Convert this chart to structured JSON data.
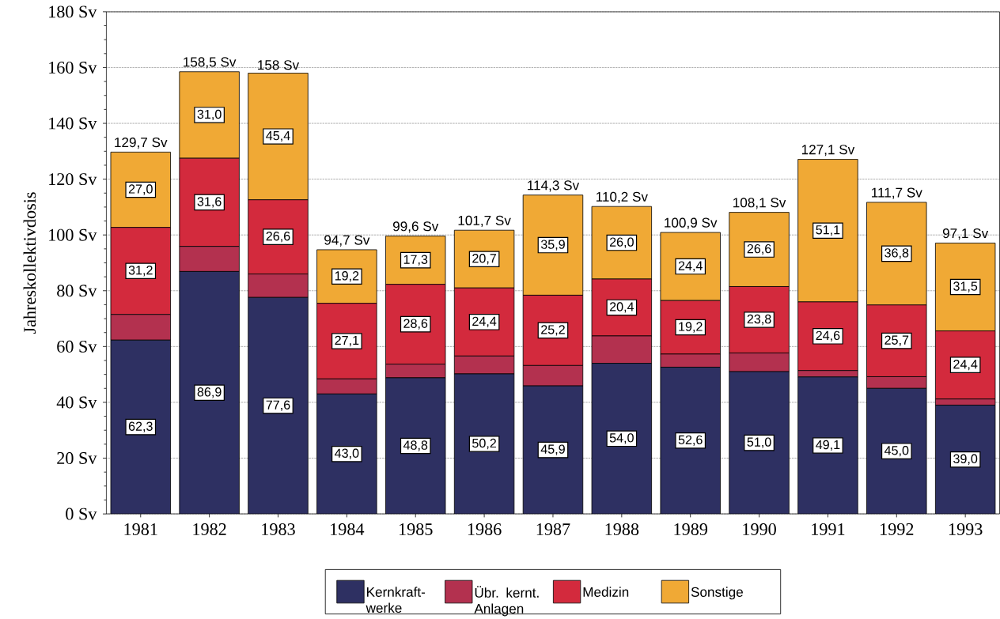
{
  "chart_data": {
    "type": "bar",
    "stacked": true,
    "ylabel": "Jahreskollektivdosis",
    "categories": [
      "1981",
      "1982",
      "1983",
      "1984",
      "1985",
      "1986",
      "1987",
      "1988",
      "1989",
      "1990",
      "1991",
      "1992",
      "1993"
    ],
    "series": [
      {
        "name": "Kernkraft-werke",
        "color": "#2e3062",
        "values": [
          62.3,
          86.9,
          77.6,
          43.0,
          48.8,
          50.2,
          45.9,
          54.0,
          52.6,
          51.0,
          49.1,
          45.0,
          39.0
        ],
        "value_labels": [
          "62,3",
          "86,9",
          "77,6",
          "43,0",
          "48,8",
          "50,2",
          "45,9",
          "54,0",
          "52,6",
          "51,0",
          "49,1",
          "45,0",
          "39,0"
        ]
      },
      {
        "name": "Übr. kernt. Anlagen",
        "color": "#b3314f",
        "values": [
          9.2,
          9.0,
          8.4,
          5.4,
          4.9,
          6.4,
          7.3,
          9.8,
          4.7,
          6.7,
          2.3,
          4.2,
          2.2
        ]
      },
      {
        "name": "Medizin",
        "color": "#d32a3d",
        "values": [
          31.2,
          31.6,
          26.6,
          27.1,
          28.6,
          24.4,
          25.2,
          20.4,
          19.2,
          23.8,
          24.6,
          25.7,
          24.4
        ],
        "value_labels": [
          "31,2",
          "31,6",
          "26,6",
          "27,1",
          "28,6",
          "24,4",
          "25,2",
          "20,4",
          "19,2",
          "23,8",
          "24,6",
          "25,7",
          "24,4"
        ]
      },
      {
        "name": "Sonstige",
        "color": "#f0a935",
        "values": [
          27.0,
          31.0,
          45.4,
          19.2,
          17.3,
          20.7,
          35.9,
          26.0,
          24.4,
          26.6,
          51.1,
          36.8,
          31.5
        ],
        "value_labels": [
          "27,0",
          "31,0",
          "45,4",
          "19,2",
          "17,3",
          "20,7",
          "35,9",
          "26,0",
          "24,4",
          "26,6",
          "51,1",
          "36,8",
          "31,5"
        ]
      }
    ],
    "totals": [
      "129,7 Sv",
      "158,5 Sv",
      "158 Sv",
      "94,7 Sv",
      "99,6 Sv",
      "101,7 Sv",
      "114,3 Sv",
      "110,2 Sv",
      "100,9 Sv",
      "108,1 Sv",
      "127,1 Sv",
      "111,7 Sv",
      "97,1 Sv"
    ],
    "ylim": [
      0,
      180
    ],
    "yticks": [
      {
        "value": 0,
        "label": "0 Sv"
      },
      {
        "value": 20,
        "label": "20 Sv"
      },
      {
        "value": 40,
        "label": "40 Sv"
      },
      {
        "value": 60,
        "label": "60 Sv"
      },
      {
        "value": 80,
        "label": "80 Sv"
      },
      {
        "value": 100,
        "label": "100 Sv"
      },
      {
        "value": 120,
        "label": "120 Sv"
      },
      {
        "value": 140,
        "label": "140 Sv"
      },
      {
        "value": 160,
        "label": "160 Sv"
      },
      {
        "value": 180,
        "label": "180 Sv"
      }
    ],
    "grid": "y",
    "legend": "bottom"
  }
}
